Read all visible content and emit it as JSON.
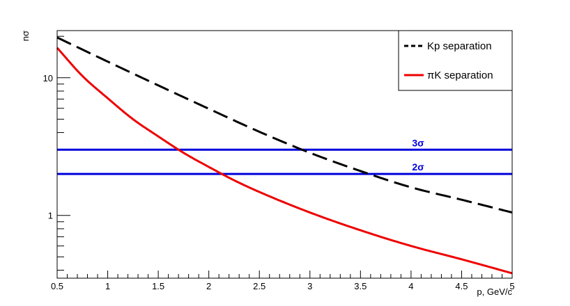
{
  "chart_data": {
    "type": "line",
    "xlabel": "p, GeV/c",
    "ylabel": "nσ",
    "xlim": [
      0.5,
      5
    ],
    "ylim": [
      0.35,
      22
    ],
    "yscale": "log",
    "x_ticks": [
      0.5,
      1,
      1.5,
      2,
      2.5,
      3,
      3.5,
      4,
      4.5,
      5
    ],
    "x_tick_labels": [
      "0.5",
      "1",
      "1.5",
      "2",
      "2.5",
      "3",
      "3.5",
      "4",
      "4.5",
      "5"
    ],
    "y_ticks": [
      1,
      10
    ],
    "y_tick_labels": [
      "1",
      "10"
    ],
    "legend_position": "top-right",
    "series": [
      {
        "name": "Kp separation",
        "color": "#000000",
        "style": "dashed",
        "x": [
          0.5,
          1.0,
          1.5,
          2.0,
          2.5,
          3.0,
          3.5,
          4.0,
          4.5,
          5.0
        ],
        "y": [
          19.6,
          13.1,
          8.8,
          5.95,
          4.05,
          2.85,
          2.1,
          1.6,
          1.3,
          1.05
        ]
      },
      {
        "name": "πK separation",
        "color": "#ee0000",
        "style": "solid",
        "x": [
          0.5,
          0.75,
          1.0,
          1.25,
          1.5,
          1.75,
          2.0,
          2.25,
          2.5,
          3.0,
          3.5,
          4.0,
          4.5,
          5.0
        ],
        "y": [
          16.5,
          10.3,
          7.1,
          5.0,
          3.75,
          2.85,
          2.25,
          1.8,
          1.48,
          1.05,
          0.78,
          0.6,
          0.48,
          0.38
        ]
      }
    ],
    "reference_lines": [
      {
        "label": "3σ",
        "y": 3,
        "color": "#0000dd"
      },
      {
        "label": "2σ",
        "y": 2,
        "color": "#0000dd"
      }
    ]
  }
}
